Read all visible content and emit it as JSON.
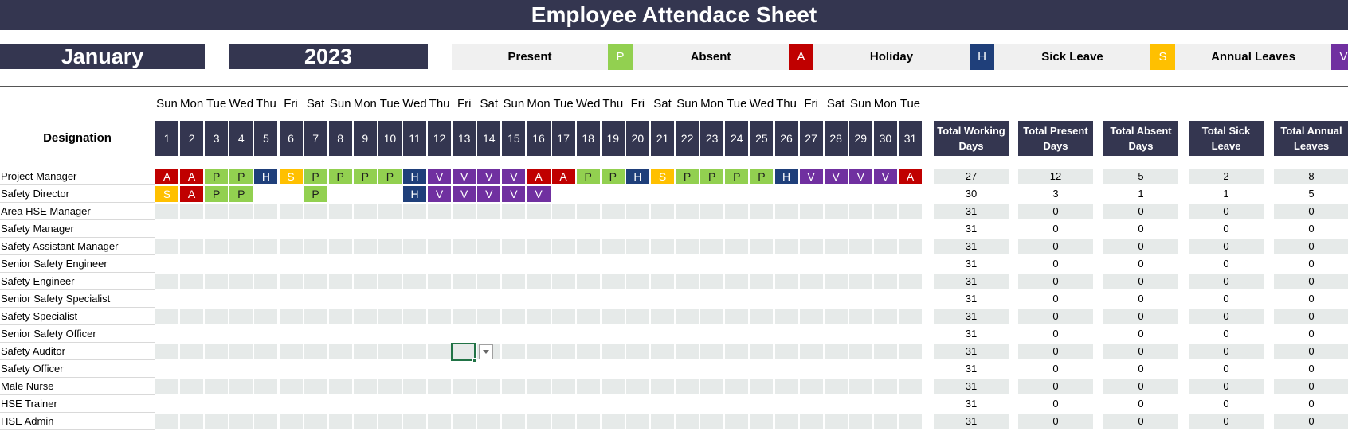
{
  "title": "Employee Attendace Sheet",
  "month": "January",
  "year": "2023",
  "legend": [
    {
      "label": "Present",
      "code": "P",
      "color": "#92d050"
    },
    {
      "label": "Absent",
      "code": "A",
      "color": "#c00000"
    },
    {
      "label": "Holiday",
      "code": "H",
      "color": "#1f3f7a"
    },
    {
      "label": "Sick Leave",
      "code": "S",
      "color": "#ffc000"
    },
    {
      "label": "Annual Leaves",
      "code": "V",
      "color": "#7030a0"
    }
  ],
  "designation_header": "Designation",
  "days_of_week": [
    "Sun",
    "Mon",
    "Tue",
    "Wed",
    "Thu",
    "Fri",
    "Sat",
    "Sun",
    "Mon",
    "Tue",
    "Wed",
    "Thu",
    "Fri",
    "Sat",
    "Sun",
    "Mon",
    "Tue",
    "Wed",
    "Thu",
    "Fri",
    "Sat",
    "Sun",
    "Mon",
    "Tue",
    "Wed",
    "Thu",
    "Fri",
    "Sat",
    "Sun",
    "Mon",
    "Tue"
  ],
  "dates": [
    "1",
    "2",
    "3",
    "4",
    "5",
    "6",
    "7",
    "8",
    "9",
    "10",
    "11",
    "12",
    "13",
    "14",
    "15",
    "16",
    "17",
    "18",
    "19",
    "20",
    "21",
    "22",
    "23",
    "24",
    "25",
    "26",
    "27",
    "28",
    "29",
    "30",
    "31"
  ],
  "total_headers": [
    "Total Working Days",
    "Total Present Days",
    "Total Absent Days",
    "Total Sick Leave",
    "Total Annual Leaves"
  ],
  "employees": [
    {
      "designation": "Project Manager",
      "days": [
        "A",
        "A",
        "P",
        "P",
        "H",
        "S",
        "P",
        "P",
        "P",
        "P",
        "H",
        "V",
        "V",
        "V",
        "V",
        "A",
        "A",
        "P",
        "P",
        "H",
        "S",
        "P",
        "P",
        "P",
        "P",
        "H",
        "V",
        "V",
        "V",
        "V",
        "A"
      ],
      "totals": [
        "27",
        "12",
        "5",
        "2",
        "8"
      ]
    },
    {
      "designation": "Safety Director",
      "days": [
        "S",
        "A",
        "P",
        "P",
        "",
        "",
        "P",
        "",
        "",
        "",
        "H",
        "V",
        "V",
        "V",
        "V",
        "V",
        "",
        "",
        "",
        "",
        "",
        "",
        "",
        "",
        "",
        "",
        "",
        "",
        "",
        "",
        ""
      ],
      "totals": [
        "30",
        "3",
        "1",
        "1",
        "5"
      ]
    },
    {
      "designation": "Area HSE Manager",
      "days": [],
      "totals": [
        "31",
        "0",
        "0",
        "0",
        "0"
      ]
    },
    {
      "designation": "Safety Manager",
      "days": [],
      "totals": [
        "31",
        "0",
        "0",
        "0",
        "0"
      ]
    },
    {
      "designation": "Safety Assistant Manager",
      "days": [],
      "totals": [
        "31",
        "0",
        "0",
        "0",
        "0"
      ]
    },
    {
      "designation": "Senior Safety Engineer",
      "days": [],
      "totals": [
        "31",
        "0",
        "0",
        "0",
        "0"
      ]
    },
    {
      "designation": "Safety Engineer",
      "days": [],
      "totals": [
        "31",
        "0",
        "0",
        "0",
        "0"
      ]
    },
    {
      "designation": "Senior Safety Specialist",
      "days": [],
      "totals": [
        "31",
        "0",
        "0",
        "0",
        "0"
      ]
    },
    {
      "designation": "Safety Specialist",
      "days": [],
      "totals": [
        "31",
        "0",
        "0",
        "0",
        "0"
      ]
    },
    {
      "designation": "Senior Safety Officer",
      "days": [],
      "totals": [
        "31",
        "0",
        "0",
        "0",
        "0"
      ]
    },
    {
      "designation": "Safety Auditor",
      "days": [],
      "totals": [
        "31",
        "0",
        "0",
        "0",
        "0"
      ]
    },
    {
      "designation": "Safety Officer",
      "days": [],
      "totals": [
        "31",
        "0",
        "0",
        "0",
        "0"
      ]
    },
    {
      "designation": "Male Nurse",
      "days": [],
      "totals": [
        "31",
        "0",
        "0",
        "0",
        "0"
      ]
    },
    {
      "designation": "HSE Trainer",
      "days": [],
      "totals": [
        "31",
        "0",
        "0",
        "0",
        "0"
      ]
    },
    {
      "designation": "HSE Admin",
      "days": [],
      "totals": [
        "31",
        "0",
        "0",
        "0",
        "0"
      ]
    }
  ]
}
